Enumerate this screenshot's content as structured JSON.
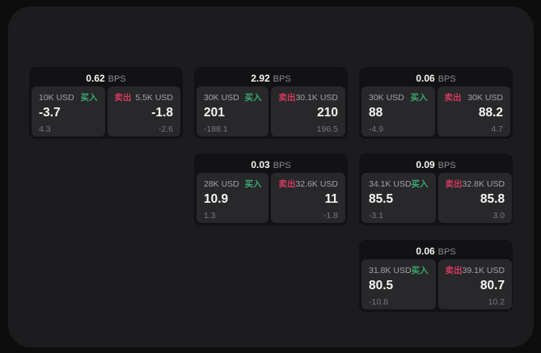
{
  "labels": {
    "bps": "BPS",
    "buy": "买入",
    "sell": "卖出"
  },
  "colors": {
    "buy_green": "#3aa873",
    "sell_red": "#d13960",
    "panel_bg": "#1c1c1e",
    "card_bg": "#121214",
    "tile_bg": "#28282a"
  },
  "columns": [
    {
      "cards": [
        {
          "bps_value": "0.62",
          "buy": {
            "amount": "10K USD",
            "price": "-3.7",
            "delta": "4.3"
          },
          "sell": {
            "amount": "5.5K USD",
            "price": "-1.8",
            "delta": "-2.6"
          }
        }
      ]
    },
    {
      "cards": [
        {
          "bps_value": "2.92",
          "buy": {
            "amount": "30K USD",
            "price": "201",
            "delta": "-188.1"
          },
          "sell": {
            "amount": "30.1K USD",
            "price": "210",
            "delta": "196.5"
          }
        },
        {
          "bps_value": "0.03",
          "buy": {
            "amount": "28K USD",
            "price": "10.9",
            "delta": "1.3"
          },
          "sell": {
            "amount": "32.6K USD",
            "price": "11",
            "delta": "-1.8"
          }
        }
      ]
    },
    {
      "cards": [
        {
          "bps_value": "0.06",
          "buy": {
            "amount": "30K USD",
            "price": "88",
            "delta": "-4.9"
          },
          "sell": {
            "amount": "30K USD",
            "price": "88.2",
            "delta": "4.7"
          }
        },
        {
          "bps_value": "0.09",
          "buy": {
            "amount": "34.1K USD",
            "price": "85.5",
            "delta": "-3.1"
          },
          "sell": {
            "amount": "32.8K USD",
            "price": "85.8",
            "delta": "3.0"
          }
        },
        {
          "bps_value": "0.06",
          "buy": {
            "amount": "31.8K USD",
            "price": "80.5",
            "delta": "-10.8"
          },
          "sell": {
            "amount": "39.1K USD",
            "price": "80.7",
            "delta": "10.2"
          }
        }
      ]
    }
  ]
}
